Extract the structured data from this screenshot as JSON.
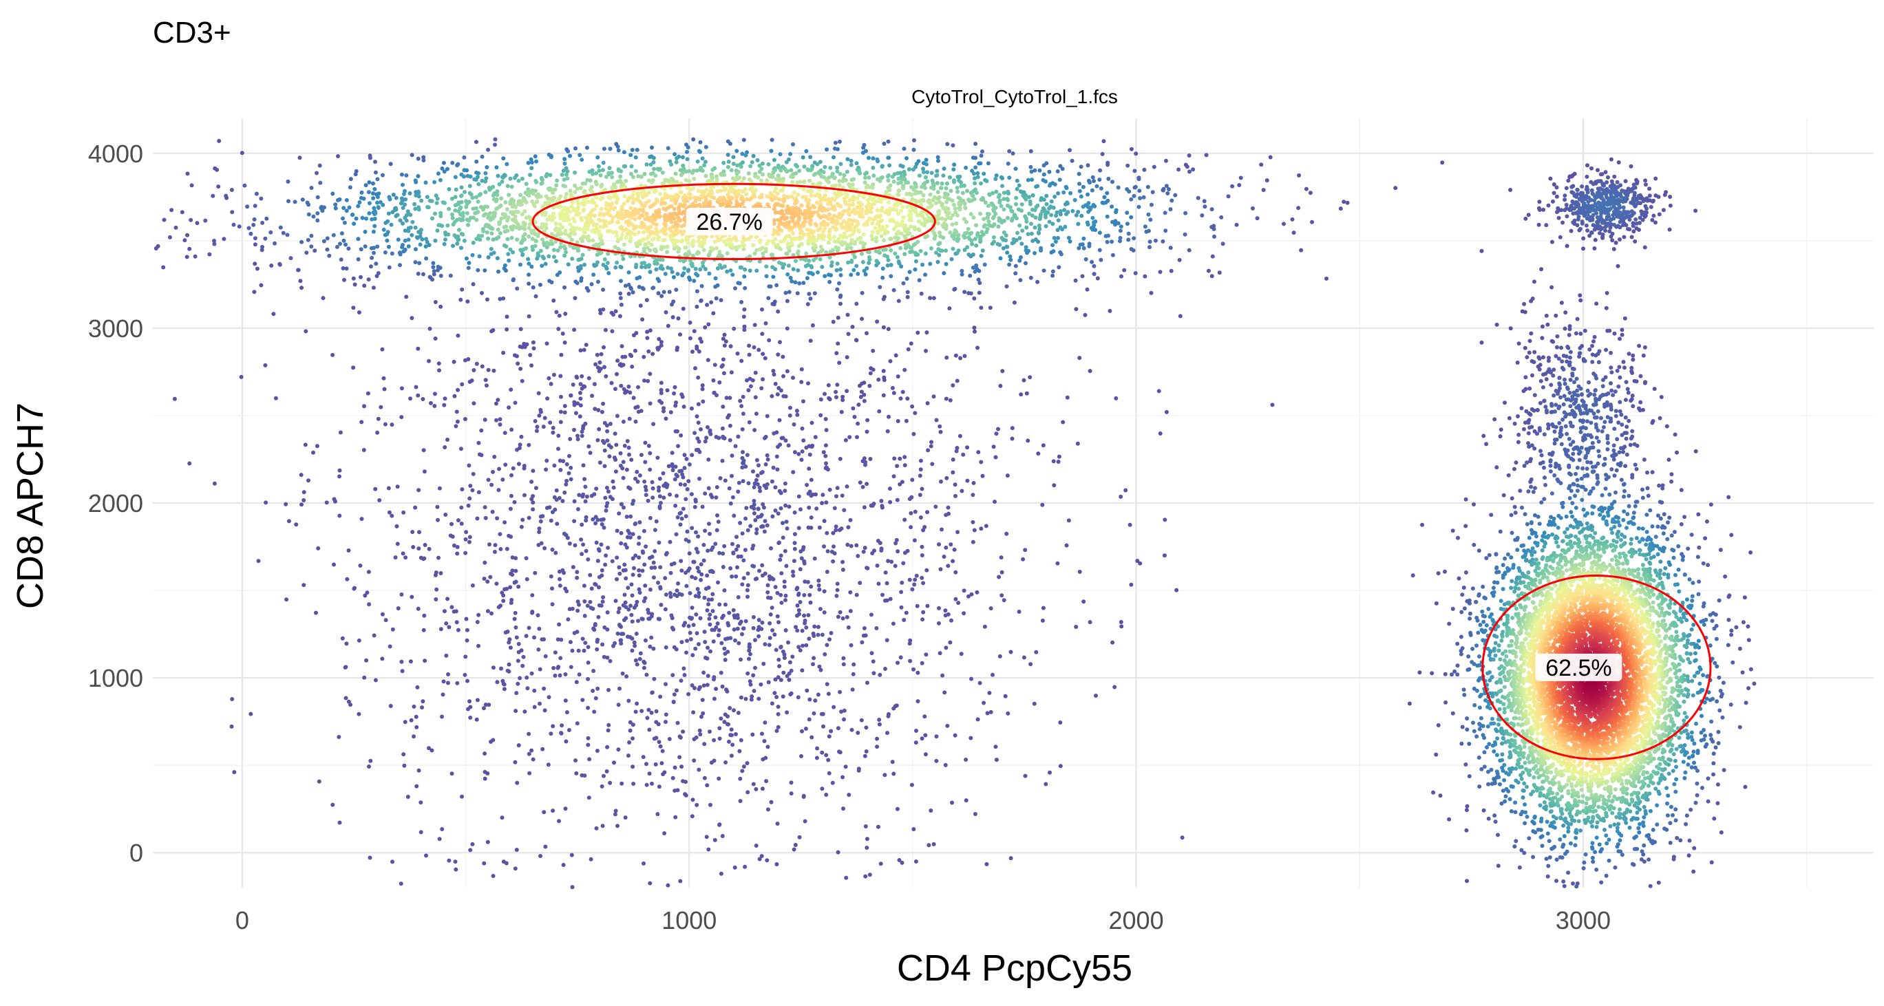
{
  "chart_data": {
    "type": "scatter",
    "title": "CD3+",
    "subtitle": "CytoTrol_CytoTrol_1.fcs",
    "xlabel": "CD4 PcpCy55",
    "ylabel": "CD8 APCH7",
    "xlim": [
      -200,
      3650
    ],
    "ylim": [
      -200,
      4200
    ],
    "xticks": [
      0,
      1000,
      2000,
      3000
    ],
    "yticks": [
      0,
      1000,
      2000,
      3000,
      4000
    ],
    "grid": true,
    "colormap": [
      "#5e4fa2",
      "#3288bd",
      "#66c2a5",
      "#abdda4",
      "#e6f598",
      "#fee08b",
      "#fdae61",
      "#f46d43",
      "#d53e4f",
      "#9e0142"
    ],
    "gate_color": "#ff0000",
    "populations": [
      {
        "cx": 1100,
        "cy": 3650,
        "sx": 420,
        "sy": 180,
        "peak": 0.62
      },
      {
        "cx": 3020,
        "cy": 1000,
        "sx": 110,
        "sy": 420,
        "peak": 1.0
      },
      {
        "cx": 3050,
        "cy": 3700,
        "sx": 60,
        "sy": 90,
        "peak": 0.05
      },
      {
        "cx": 3000,
        "cy": 2500,
        "sx": 80,
        "sy": 300,
        "peak": 0.03
      },
      {
        "cx": 1000,
        "cy": 1800,
        "sx": 380,
        "sy": 900,
        "peak": 0.01
      }
    ],
    "gates": [
      {
        "label": "26.7%",
        "cx": 1100,
        "cy": 3610,
        "rx": 900,
        "ry": 430,
        "label_x": 1090,
        "label_y": 3610
      },
      {
        "label": "62.5%",
        "cx": 3030,
        "cy": 1060,
        "rx": 510,
        "ry": 1050,
        "label_x": 2990,
        "label_y": 1060
      }
    ]
  }
}
